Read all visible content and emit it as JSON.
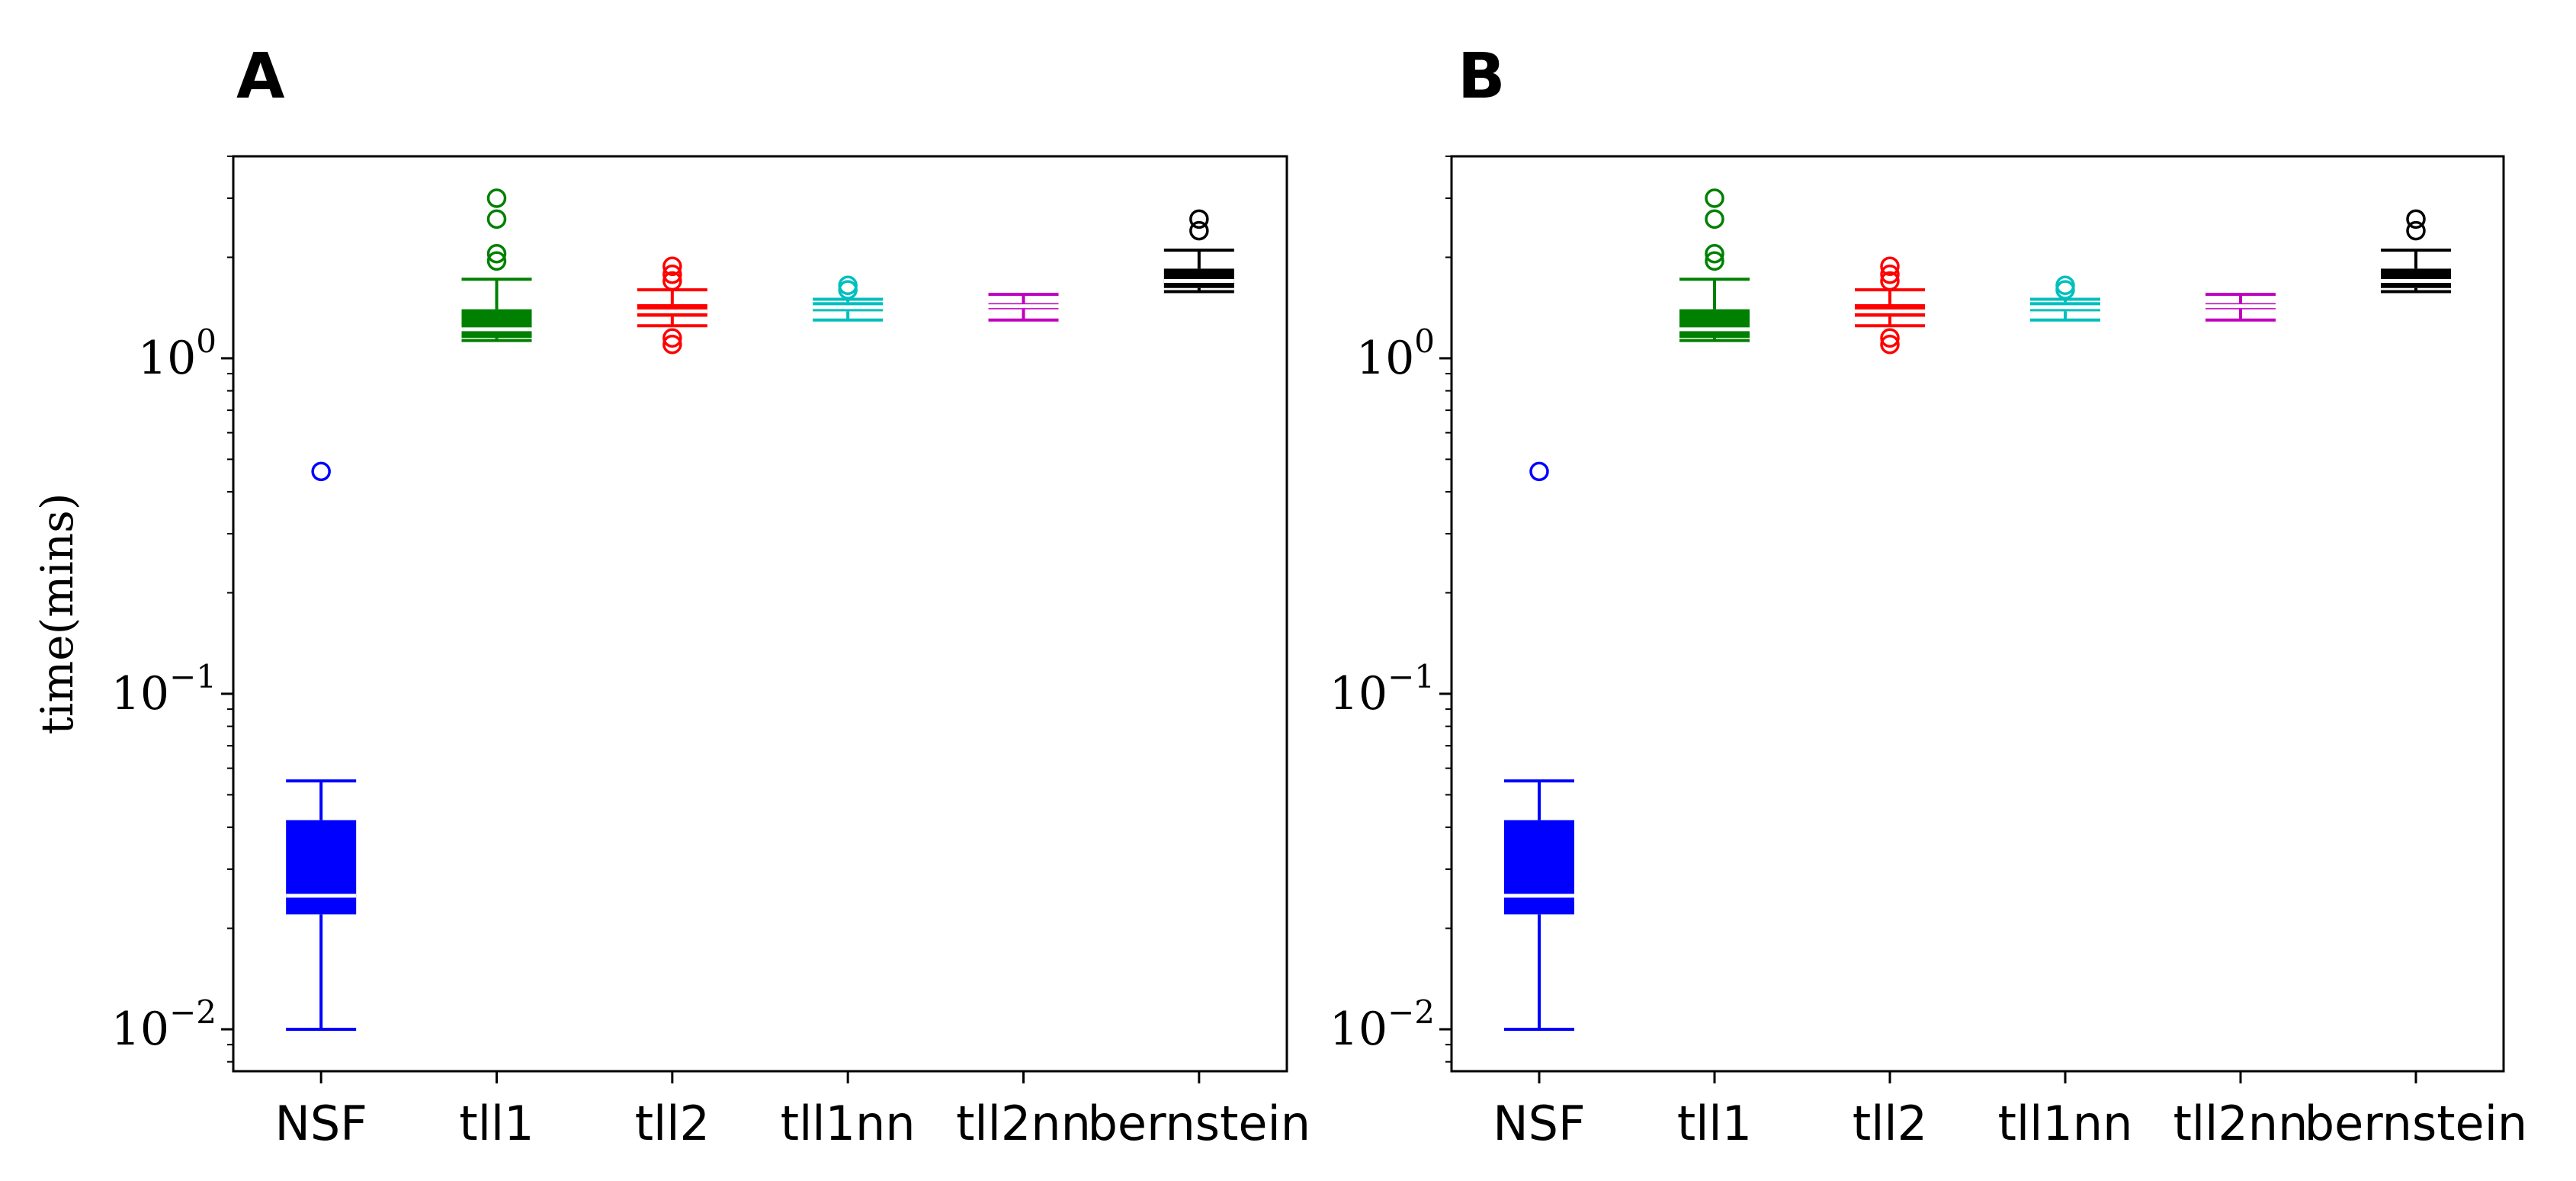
{
  "chart_data": [
    {
      "type": "box",
      "panel_label": "A",
      "title": "",
      "xlabel": "",
      "ylabel": "time(mins)",
      "yscale": "log",
      "ylim": [
        0.0075,
        4.0
      ],
      "y_ticks": [
        {
          "base": "10",
          "exp": "−2",
          "value": 0.01
        },
        {
          "base": "10",
          "exp": "−1",
          "value": 0.1
        },
        {
          "base": "10",
          "exp": "0",
          "value": 1
        }
      ],
      "categories": [
        "NSF",
        "tll1",
        "tll2",
        "tll1nn",
        "tll2nn",
        "bernstein"
      ],
      "boxes": [
        {
          "category": "NSF",
          "color": "#0000ff",
          "whisker_low": 0.01,
          "q1": 0.022,
          "median": 0.025,
          "q3": 0.042,
          "whisker_high": 0.055,
          "fliers": [
            0.46
          ]
        },
        {
          "category": "tll1",
          "color": "#008000",
          "whisker_low": 1.13,
          "q1": 1.15,
          "median": 1.22,
          "q3": 1.4,
          "whisker_high": 1.72,
          "fliers": [
            1.95,
            2.05,
            2.6,
            3.0
          ]
        },
        {
          "category": "tll2",
          "color": "#ff0000",
          "whisker_low": 1.25,
          "q1": 1.33,
          "median": 1.38,
          "q3": 1.45,
          "whisker_high": 1.6,
          "fliers": [
            1.1,
            1.15,
            1.7,
            1.78,
            1.88
          ]
        },
        {
          "category": "tll1nn",
          "color": "#00bfbf",
          "whisker_low": 1.3,
          "q1": 1.38,
          "median": 1.42,
          "q3": 1.47,
          "whisker_high": 1.5,
          "fliers": [
            1.6,
            1.65
          ]
        },
        {
          "category": "tll2nn",
          "color": "#bf00bf",
          "whisker_low": 1.3,
          "q1": 1.4,
          "median": 1.43,
          "q3": 1.46,
          "whisker_high": 1.55,
          "fliers": []
        },
        {
          "category": "bernstein",
          "color": "#000000",
          "whisker_low": 1.58,
          "q1": 1.62,
          "median": 1.7,
          "q3": 1.85,
          "whisker_high": 2.1,
          "fliers": [
            2.4,
            2.6
          ]
        }
      ]
    },
    {
      "type": "box",
      "panel_label": "B",
      "title": "",
      "xlabel": "",
      "ylabel": "",
      "yscale": "log",
      "ylim": [
        0.0075,
        4.0
      ],
      "y_ticks": [
        {
          "base": "10",
          "exp": "−2",
          "value": 0.01
        },
        {
          "base": "10",
          "exp": "−1",
          "value": 0.1
        },
        {
          "base": "10",
          "exp": "0",
          "value": 1
        }
      ],
      "categories": [
        "NSF",
        "tll1",
        "tll2",
        "tll1nn",
        "tll2nn",
        "bernstein"
      ],
      "boxes": [
        {
          "category": "NSF",
          "color": "#0000ff",
          "whisker_low": 0.01,
          "q1": 0.022,
          "median": 0.025,
          "q3": 0.042,
          "whisker_high": 0.055,
          "fliers": [
            0.46
          ]
        },
        {
          "category": "tll1",
          "color": "#008000",
          "whisker_low": 1.13,
          "q1": 1.15,
          "median": 1.22,
          "q3": 1.4,
          "whisker_high": 1.72,
          "fliers": [
            1.95,
            2.05,
            2.6,
            3.0
          ]
        },
        {
          "category": "tll2",
          "color": "#ff0000",
          "whisker_low": 1.25,
          "q1": 1.33,
          "median": 1.38,
          "q3": 1.45,
          "whisker_high": 1.6,
          "fliers": [
            1.1,
            1.15,
            1.7,
            1.78,
            1.88
          ]
        },
        {
          "category": "tll1nn",
          "color": "#00bfbf",
          "whisker_low": 1.3,
          "q1": 1.38,
          "median": 1.42,
          "q3": 1.47,
          "whisker_high": 1.5,
          "fliers": [
            1.6,
            1.65
          ]
        },
        {
          "category": "tll2nn",
          "color": "#bf00bf",
          "whisker_low": 1.3,
          "q1": 1.4,
          "median": 1.43,
          "q3": 1.46,
          "whisker_high": 1.55,
          "fliers": []
        },
        {
          "category": "bernstein",
          "color": "#000000",
          "whisker_low": 1.58,
          "q1": 1.62,
          "median": 1.7,
          "q3": 1.85,
          "whisker_high": 2.1,
          "fliers": [
            2.4,
            2.6
          ]
        }
      ]
    }
  ]
}
